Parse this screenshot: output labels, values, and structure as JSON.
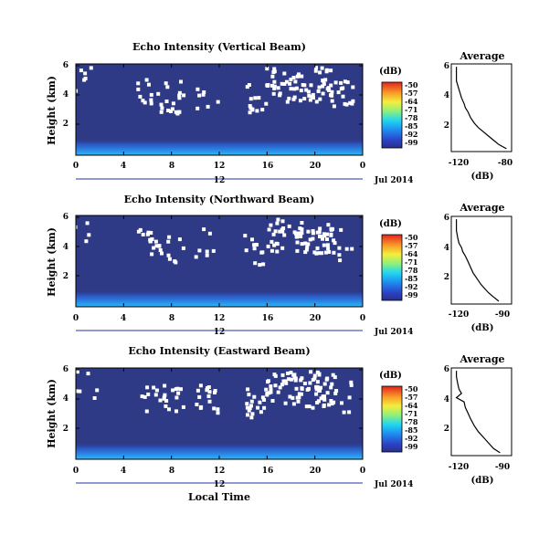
{
  "chart_data": [
    {
      "type": "heatmap",
      "title": "Echo Intensity (Vertical Beam)",
      "ylabel": "Height (km)",
      "x_ticks": [
        "0",
        "4",
        "8",
        "12",
        "16",
        "20",
        "0"
      ],
      "y_ticks": [
        "2",
        "4",
        "6"
      ],
      "date_day": "12",
      "date_label": "Jul 2014",
      "colorbar": {
        "unit": "(dB)",
        "ticks": [
          "-50",
          "-57",
          "-64",
          "-71",
          "-78",
          "-85",
          "-92",
          "-99"
        ]
      },
      "profile": {
        "title": "Average",
        "xlabel": "(dB)",
        "x_ticks": [
          "-120",
          "-80"
        ],
        "y_ticks": [
          "2",
          "4",
          "6"
        ],
        "points": [
          [
            -82,
            0.2
          ],
          [
            -88,
            0.5
          ],
          [
            -92,
            0.8
          ],
          [
            -96,
            1.1
          ],
          [
            -100,
            1.4
          ],
          [
            -104,
            1.7
          ],
          [
            -107,
            2.0
          ],
          [
            -110,
            2.4
          ],
          [
            -112,
            2.8
          ],
          [
            -114,
            3.1
          ],
          [
            -115,
            3.4
          ],
          [
            -117,
            3.8
          ],
          [
            -118,
            4.1
          ],
          [
            -119,
            4.4
          ],
          [
            -120,
            4.7
          ],
          [
            -121,
            5.0
          ],
          [
            -121,
            5.5
          ],
          [
            -121,
            6.0
          ]
        ]
      }
    },
    {
      "type": "heatmap",
      "title": "Echo Intensity (Northward Beam)",
      "ylabel": "Height (km)",
      "x_ticks": [
        "0",
        "4",
        "8",
        "12",
        "16",
        "20",
        "0"
      ],
      "y_ticks": [
        "2",
        "4",
        "6"
      ],
      "date_day": "12",
      "date_label": "Jul 2014",
      "colorbar": {
        "unit": "(dB)",
        "ticks": [
          "-50",
          "-57",
          "-64",
          "-71",
          "-78",
          "-85",
          "-92",
          "-99"
        ]
      },
      "profile": {
        "title": "Average",
        "xlabel": "(dB)",
        "x_ticks": [
          "-120",
          "-90"
        ],
        "y_ticks": [
          "2",
          "4",
          "6"
        ],
        "points": [
          [
            -88,
            0.2
          ],
          [
            -92,
            0.5
          ],
          [
            -96,
            0.8
          ],
          [
            -99,
            1.1
          ],
          [
            -102,
            1.4
          ],
          [
            -105,
            1.8
          ],
          [
            -108,
            2.2
          ],
          [
            -110,
            2.6
          ],
          [
            -112,
            3.0
          ],
          [
            -114,
            3.4
          ],
          [
            -116,
            3.7
          ],
          [
            -117,
            4.0
          ],
          [
            -119,
            4.3
          ],
          [
            -120,
            4.7
          ],
          [
            -121,
            5.2
          ],
          [
            -121,
            5.6
          ],
          [
            -121,
            6.0
          ]
        ]
      }
    },
    {
      "type": "heatmap",
      "title": "Echo Intensity (Eastward Beam)",
      "ylabel": "Height (km)",
      "xlabel": "Local Time",
      "x_ticks": [
        "0",
        "4",
        "8",
        "12",
        "16",
        "20",
        "0"
      ],
      "y_ticks": [
        "2",
        "4",
        "6"
      ],
      "date_day": "12",
      "date_label": "Jul 2014",
      "colorbar": {
        "unit": "(dB)",
        "ticks": [
          "-50",
          "-57",
          "-64",
          "-71",
          "-78",
          "-85",
          "-92",
          "-99"
        ]
      },
      "profile": {
        "title": "Average",
        "xlabel": "(dB)",
        "x_ticks": [
          "-120",
          "-90"
        ],
        "y_ticks": [
          "2",
          "4",
          "6"
        ],
        "points": [
          [
            -87,
            0.2
          ],
          [
            -92,
            0.5
          ],
          [
            -96,
            0.9
          ],
          [
            -100,
            1.3
          ],
          [
            -104,
            1.7
          ],
          [
            -107,
            2.1
          ],
          [
            -110,
            2.6
          ],
          [
            -112,
            3.0
          ],
          [
            -114,
            3.4
          ],
          [
            -115,
            3.8
          ],
          [
            -121,
            4.1
          ],
          [
            -117,
            4.4
          ],
          [
            -119,
            4.7
          ],
          [
            -120,
            5.1
          ],
          [
            -121,
            5.6
          ],
          [
            -121,
            6.0
          ]
        ]
      }
    }
  ]
}
